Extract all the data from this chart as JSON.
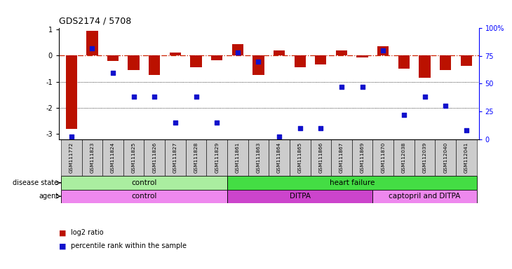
{
  "title": "GDS2174 / 5708",
  "samples": [
    "GSM111772",
    "GSM111823",
    "GSM111824",
    "GSM111825",
    "GSM111826",
    "GSM111827",
    "GSM111828",
    "GSM111829",
    "GSM111861",
    "GSM111863",
    "GSM111864",
    "GSM111865",
    "GSM111866",
    "GSM111867",
    "GSM111869",
    "GSM111870",
    "GSM112038",
    "GSM112039",
    "GSM112040",
    "GSM112041"
  ],
  "log2_ratio": [
    -2.8,
    0.95,
    -0.2,
    -0.55,
    -0.75,
    0.12,
    -0.45,
    -0.18,
    0.45,
    -0.75,
    0.2,
    -0.45,
    -0.35,
    0.2,
    -0.08,
    0.35,
    -0.5,
    -0.85,
    -0.55,
    -0.38
  ],
  "pct_rank": [
    2,
    82,
    60,
    38,
    38,
    15,
    38,
    15,
    78,
    70,
    2,
    10,
    10,
    47,
    47,
    80,
    22,
    38,
    30,
    8
  ],
  "ylim_lo": -3.2,
  "ylim_hi": 1.05,
  "disease_state_groups": [
    {
      "label": "control",
      "start": 0,
      "end": 8,
      "color": "#aaeea0"
    },
    {
      "label": "heart failure",
      "start": 8,
      "end": 20,
      "color": "#44dd44"
    }
  ],
  "agent_groups": [
    {
      "label": "control",
      "start": 0,
      "end": 8,
      "color": "#ee88ee"
    },
    {
      "label": "DITPA",
      "start": 8,
      "end": 15,
      "color": "#cc44cc"
    },
    {
      "label": "captopril and DITPA",
      "start": 15,
      "end": 20,
      "color": "#ee88ee"
    }
  ],
  "bar_color": "#bb1100",
  "dot_color": "#1111cc",
  "hline_color": "#cc2200",
  "legend_items": [
    {
      "label": "log2 ratio",
      "color": "#bb1100"
    },
    {
      "label": "percentile rank within the sample",
      "color": "#1111cc"
    }
  ]
}
